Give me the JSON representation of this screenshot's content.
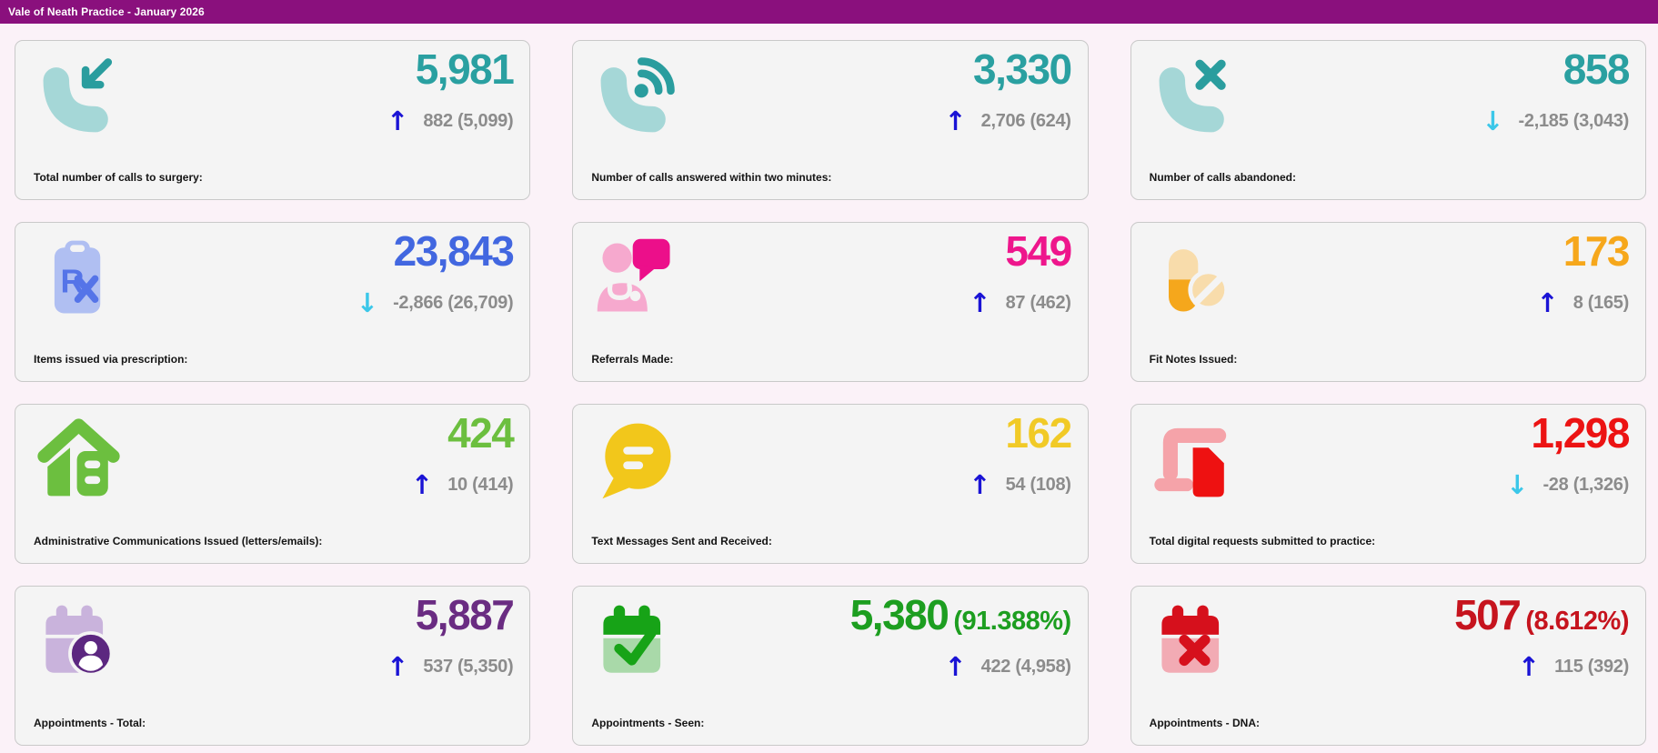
{
  "header": {
    "title": "Vale of Neath Practice - January 2026",
    "bg_color": "#8a107d"
  },
  "trend_glyphs": {
    "up": "↑",
    "down": "↓"
  },
  "trend_colors": {
    "up": "#1a13d5",
    "down": "#3bc7e9"
  },
  "card_bg": "#f4f4f4",
  "cards": [
    {
      "id": "calls-total",
      "label": "Total number of calls to surgery:",
      "value": "5,981",
      "value_suffix": "",
      "value_color": "#2aa0a1",
      "trend": "up",
      "delta": "882 (5,099)",
      "icon": "phone-incoming"
    },
    {
      "id": "calls-answered",
      "label": "Number of calls answered within two minutes:",
      "value": "3,330",
      "value_suffix": "",
      "value_color": "#2aa0a1",
      "trend": "up",
      "delta": "2,706 (624)",
      "icon": "phone-volume"
    },
    {
      "id": "calls-abandoned",
      "label": "Number of calls abandoned:",
      "value": "858",
      "value_suffix": "",
      "value_color": "#2aa0a1",
      "trend": "down",
      "delta": "-2,185 (3,043)",
      "icon": "phone-xmark"
    },
    {
      "id": "prescriptions",
      "label": "Items issued via prescription:",
      "value": "23,843",
      "value_suffix": "",
      "value_color": "#4267e0",
      "trend": "down",
      "delta": "-2,866 (26,709)",
      "icon": "prescription"
    },
    {
      "id": "referrals",
      "label": "Referrals Made:",
      "value": "549",
      "value_suffix": "",
      "value_color": "#ee168c",
      "trend": "up",
      "delta": "87 (462)",
      "icon": "doctor-message"
    },
    {
      "id": "fit-notes",
      "label": "Fit Notes Issued:",
      "value": "173",
      "value_suffix": "",
      "value_color": "#f6a71b",
      "trend": "up",
      "delta": "8 (165)",
      "icon": "pills"
    },
    {
      "id": "admin-comms",
      "label": "Administrative Communications Issued (letters/emails):",
      "value": "424",
      "value_suffix": "",
      "value_color": "#6cbf3f",
      "trend": "up",
      "delta": "10 (414)",
      "icon": "house-cabinet"
    },
    {
      "id": "text-messages",
      "label": "Text Messages Sent and Received:",
      "value": "162",
      "value_suffix": "",
      "value_color": "#f1ca27",
      "trend": "up",
      "delta": "54 (108)",
      "icon": "message-bubble"
    },
    {
      "id": "digital-requests",
      "label": "Total digital requests submitted to practice:",
      "value": "1,298",
      "value_suffix": "",
      "value_color": "#ec1313",
      "trend": "down",
      "delta": "-28 (1,326)",
      "icon": "laptop-file"
    },
    {
      "id": "appts-total",
      "label": "Appointments - Total:",
      "value": "5,887",
      "value_suffix": "",
      "value_color": "#6a2c82",
      "trend": "up",
      "delta": "537 (5,350)",
      "icon": "calendar-user"
    },
    {
      "id": "appts-seen",
      "label": "Appointments - Seen:",
      "value": "5,380",
      "value_suffix": "(91.388%)",
      "value_color": "#1d9e20",
      "trend": "up",
      "delta": "422 (4,958)",
      "icon": "calendar-check"
    },
    {
      "id": "appts-dna",
      "label": "Appointments - DNA:",
      "value": "507",
      "value_suffix": "(8.612%)",
      "value_color": "#c6141e",
      "trend": "up",
      "delta": "115 (392)",
      "icon": "calendar-xmark"
    }
  ]
}
